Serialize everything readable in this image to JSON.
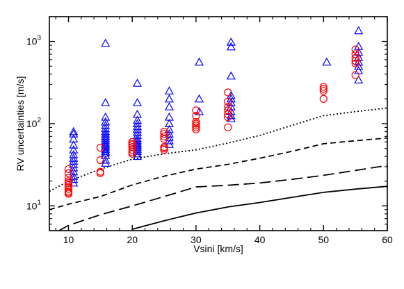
{
  "chart_data": {
    "type": "scatter",
    "xlabel": "Vsini [km/s]",
    "ylabel": "RV uncertainties [m/s]",
    "xlim": [
      7,
      60
    ],
    "ylim": [
      5,
      2000
    ],
    "y_scale": "log",
    "x_ticks": [
      10,
      20,
      30,
      40,
      50,
      60
    ],
    "x_tick_labels": [
      "10",
      "20",
      "30",
      "40",
      "50",
      "60"
    ],
    "y_ticks": [
      10,
      100,
      1000
    ],
    "y_tick_labels": [
      {
        "base": "10",
        "exp": "1"
      },
      {
        "base": "10",
        "exp": "2"
      },
      {
        "base": "10",
        "exp": "3"
      }
    ],
    "grid": false,
    "legend": "none",
    "scatter_series": [
      {
        "marker": "triangle",
        "color": "#0000ff",
        "points": [
          [
            10.8,
            80
          ],
          [
            10.8,
            75
          ],
          [
            10.8,
            65
          ],
          [
            10.8,
            55
          ],
          [
            10.8,
            48
          ],
          [
            10.8,
            42
          ],
          [
            10.8,
            38
          ],
          [
            10.8,
            35
          ],
          [
            10.8,
            32
          ],
          [
            10.8,
            29
          ],
          [
            10.8,
            26
          ],
          [
            10.8,
            23
          ],
          [
            10.8,
            21
          ],
          [
            10.8,
            19
          ],
          [
            15.8,
            950
          ],
          [
            15.8,
            180
          ],
          [
            15.8,
            120
          ],
          [
            15.8,
            105
          ],
          [
            15.8,
            95
          ],
          [
            15.8,
            87
          ],
          [
            15.8,
            80
          ],
          [
            15.8,
            75
          ],
          [
            15.8,
            70
          ],
          [
            15.8,
            66
          ],
          [
            15.8,
            62
          ],
          [
            15.8,
            58
          ],
          [
            15.8,
            55
          ],
          [
            15.8,
            52
          ],
          [
            15.8,
            49
          ],
          [
            15.8,
            46
          ],
          [
            15.8,
            44
          ],
          [
            15.8,
            41
          ],
          [
            15.8,
            36
          ],
          [
            15.8,
            33
          ],
          [
            20.8,
            310
          ],
          [
            20.8,
            180
          ],
          [
            20.8,
            130
          ],
          [
            20.8,
            110
          ],
          [
            20.8,
            100
          ],
          [
            20.8,
            92
          ],
          [
            20.8,
            85
          ],
          [
            20.8,
            78
          ],
          [
            20.8,
            72
          ],
          [
            20.8,
            66
          ],
          [
            20.8,
            62
          ],
          [
            20.8,
            58
          ],
          [
            20.8,
            55
          ],
          [
            20.8,
            52
          ],
          [
            20.8,
            49
          ],
          [
            20.8,
            46
          ],
          [
            20.8,
            43
          ],
          [
            20.8,
            40
          ],
          [
            25.8,
            250
          ],
          [
            25.8,
            200
          ],
          [
            25.8,
            160
          ],
          [
            25.8,
            120
          ],
          [
            25.8,
            100
          ],
          [
            25.8,
            85
          ],
          [
            25.8,
            75
          ],
          [
            25.8,
            68
          ],
          [
            25.8,
            62
          ],
          [
            25.8,
            56
          ],
          [
            30.5,
            560
          ],
          [
            30.5,
            200
          ],
          [
            30.5,
            140
          ],
          [
            35.5,
            980
          ],
          [
            35.5,
            860
          ],
          [
            35.5,
            380
          ],
          [
            35.5,
            220
          ],
          [
            35.5,
            200
          ],
          [
            35.5,
            180
          ],
          [
            35.5,
            160
          ],
          [
            35.5,
            140
          ],
          [
            35.5,
            125
          ],
          [
            35.5,
            115
          ],
          [
            50.5,
            560
          ],
          [
            55.5,
            1350
          ],
          [
            55.5,
            870
          ],
          [
            55.5,
            740
          ],
          [
            55.5,
            640
          ],
          [
            55.5,
            560
          ],
          [
            55.5,
            500
          ],
          [
            55.5,
            440
          ],
          [
            55.5,
            340
          ]
        ]
      },
      {
        "marker": "circle",
        "color": "#ff0000",
        "points": [
          [
            10,
            28
          ],
          [
            10,
            25
          ],
          [
            10,
            22
          ],
          [
            10,
            20
          ],
          [
            10,
            19
          ],
          [
            10,
            18
          ],
          [
            10,
            17
          ],
          [
            10,
            16
          ],
          [
            10,
            15
          ],
          [
            10,
            14.5
          ],
          [
            10,
            14
          ],
          [
            15,
            51
          ],
          [
            15,
            36
          ],
          [
            15,
            26
          ],
          [
            15,
            25
          ],
          [
            20,
            60
          ],
          [
            20,
            57
          ],
          [
            20,
            55
          ],
          [
            20,
            52
          ],
          [
            20,
            48
          ],
          [
            20,
            45
          ],
          [
            20,
            43
          ],
          [
            25,
            80
          ],
          [
            25,
            75
          ],
          [
            25,
            70
          ],
          [
            25,
            65
          ],
          [
            25,
            52
          ],
          [
            25,
            50
          ],
          [
            25,
            48
          ],
          [
            30,
            145
          ],
          [
            30,
            125
          ],
          [
            30,
            105
          ],
          [
            30,
            100
          ],
          [
            30,
            95
          ],
          [
            30,
            90
          ],
          [
            30,
            85
          ],
          [
            35,
            240
          ],
          [
            35,
            185
          ],
          [
            35,
            160
          ],
          [
            35,
            145
          ],
          [
            35,
            130
          ],
          [
            35,
            120
          ],
          [
            35,
            90
          ],
          [
            50,
            280
          ],
          [
            50,
            265
          ],
          [
            50,
            250
          ],
          [
            50,
            200
          ],
          [
            55,
            800
          ],
          [
            55,
            700
          ],
          [
            55,
            630
          ],
          [
            55,
            580
          ],
          [
            55,
            540
          ],
          [
            55,
            390
          ]
        ]
      }
    ],
    "line_series": [
      {
        "style": "dotted",
        "x": [
          7,
          10,
          15,
          20,
          25,
          30,
          35,
          40,
          45,
          50,
          55,
          60
        ],
        "y": [
          15,
          20,
          28,
          37,
          43,
          48,
          58,
          72,
          95,
          125,
          140,
          155
        ]
      },
      {
        "style": "dashed",
        "x": [
          7,
          10,
          15,
          20,
          25,
          30,
          35,
          40,
          45,
          50,
          55,
          60
        ],
        "y": [
          9,
          10.5,
          13,
          18,
          23,
          28,
          32,
          38,
          46,
          57,
          62,
          67
        ]
      },
      {
        "style": "longdash",
        "x": [
          8.5,
          10,
          15,
          20,
          25,
          30,
          35,
          40,
          45,
          50,
          55,
          60
        ],
        "y": [
          5,
          5.8,
          7.8,
          10,
          13,
          17,
          17.8,
          19,
          21,
          23.5,
          27,
          31
        ]
      },
      {
        "style": "solid",
        "x": [
          20,
          25,
          30,
          35,
          40,
          45,
          50,
          55,
          60
        ],
        "y": [
          5.2,
          6.6,
          8.2,
          9.7,
          11,
          12.7,
          14.6,
          16,
          17.3
        ]
      }
    ]
  }
}
